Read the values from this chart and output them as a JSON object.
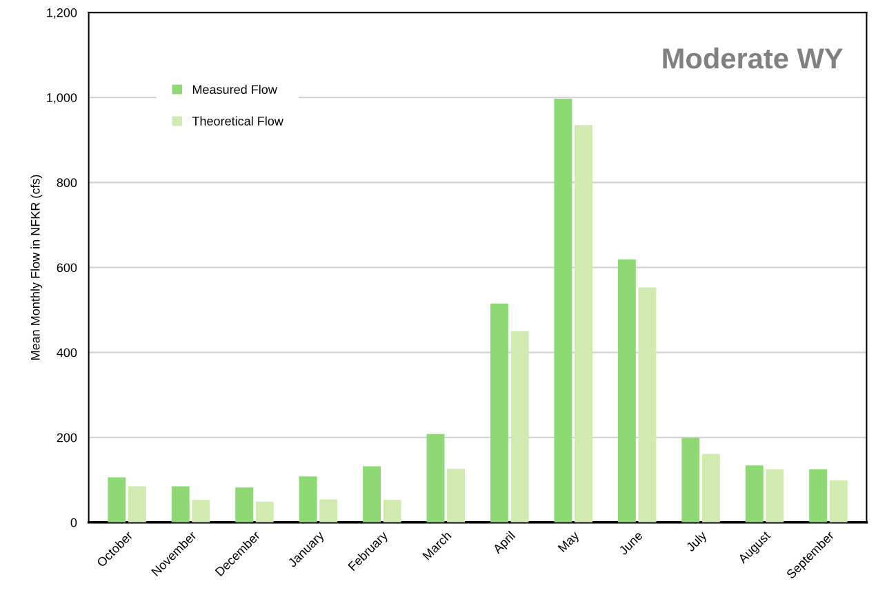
{
  "chart_data": {
    "type": "bar",
    "title": "Moderate WY",
    "ylabel": "Mean Monthly Flow in NFKR (cfs)",
    "categories": [
      "October",
      "November",
      "December",
      "January",
      "February",
      "March",
      "April",
      "May",
      "June",
      "July",
      "August",
      "September"
    ],
    "series": [
      {
        "name": "Measured Flow",
        "color": "#8fd974",
        "values": [
          106,
          85,
          82,
          108,
          132,
          208,
          515,
          997,
          619,
          199,
          134,
          125
        ]
      },
      {
        "name": "Theoretical Flow",
        "color": "#d0eab0",
        "values": [
          85,
          53,
          49,
          54,
          53,
          126,
          450,
          935,
          553,
          161,
          125,
          99
        ]
      }
    ],
    "ylim": [
      0,
      1200
    ],
    "yticks": [
      0,
      200,
      400,
      600,
      800,
      {
        "value": 1000,
        "label": "1,000"
      },
      {
        "value": 1200,
        "label": "1,200"
      }
    ],
    "grid": "y",
    "legend": "top left"
  }
}
